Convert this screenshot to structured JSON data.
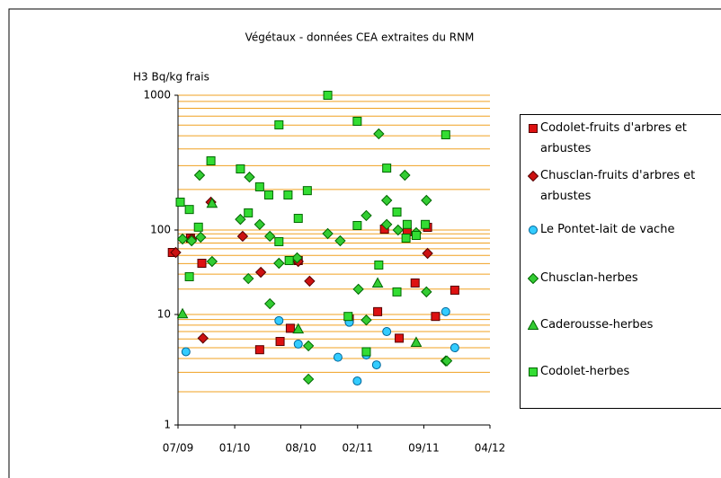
{
  "chart_data": {
    "type": "scatter",
    "title": "Végétaux - données CEA extraites du RNM",
    "y_label": "H3 Bq/kg frais",
    "xlim": [
      2009.5,
      2012.25
    ],
    "xticks": [
      {
        "value": 2009.5,
        "label": "07/09"
      },
      {
        "value": 2010.0,
        "label": "01/10"
      },
      {
        "value": 2010.583,
        "label": "08/10"
      },
      {
        "value": 2011.083,
        "label": "02/11"
      },
      {
        "value": 2011.667,
        "label": "09/11"
      },
      {
        "value": 2012.25,
        "label": "04/12"
      }
    ],
    "ylim": [
      1,
      1000
    ],
    "yticks": [
      1,
      10,
      100,
      1000
    ],
    "log_y": true,
    "grid": true,
    "grid_color": "#f0a020",
    "legend": "right",
    "series": [
      {
        "name": "Codolet-fruits d'arbres et arbustes",
        "color": "#dd1111",
        "marker": "square",
        "x": [
          2009.45,
          2009.61,
          2009.71,
          2010.22,
          2010.4,
          2010.49,
          2010.56,
          2011.01,
          2011.26,
          2011.32,
          2011.45,
          2011.52,
          2011.59,
          2011.7,
          2011.77,
          2011.94
        ],
        "values": [
          54.2,
          80.2,
          40.4,
          4.8,
          5.7,
          7.5,
          43.5,
          9.1,
          10.8,
          101.5,
          6.1,
          95.2,
          23.6,
          104.7,
          9.6,
          19.4
        ]
      },
      {
        "name": "Chusclan-fruits d'arbres et arbustes",
        "color": "#cc1111",
        "marker": "diamond",
        "x": [
          2009.48,
          2009.62,
          2009.72,
          2009.79,
          2010.07,
          2010.23,
          2010.56,
          2010.66,
          2011.7
        ],
        "values": [
          54.2,
          78.3,
          6.1,
          161,
          84.3,
          31.6,
          42.4,
          24.8,
          52.9
        ]
      },
      {
        "name": "Le Pontet-lait de vache",
        "color": "#33ccff",
        "marker": "circle",
        "x": [
          2009.57,
          2010.39,
          2010.56,
          2010.91,
          2011.01,
          2011.08,
          2011.16,
          2011.25,
          2011.34,
          2011.86,
          2011.94
        ],
        "values": [
          4.6,
          8.8,
          5.4,
          4.1,
          8.5,
          2.5,
          4.3,
          3.5,
          7.0,
          10.8,
          5.0
        ]
      },
      {
        "name": "Chusclan-herbes",
        "color": "#33cc33",
        "marker": "diamond",
        "x": [
          2009.54,
          2009.62,
          2009.69,
          2009.7,
          2009.8,
          2010.05,
          2010.12,
          2010.13,
          2010.22,
          2010.31,
          2010.31,
          2010.39,
          2010.55,
          2010.65,
          2010.65,
          2010.82,
          2010.93,
          2011.09,
          2011.16,
          2011.16,
          2011.27,
          2011.34,
          2011.34,
          2011.44,
          2011.5,
          2011.6,
          2011.69,
          2011.69,
          2011.86,
          2011.87
        ],
        "values": [
          78.3,
          74.5,
          255,
          82.2,
          42.4,
          120,
          26.6,
          247,
          110,
          84.3,
          13.4,
          40.4,
          46.8,
          5.2,
          2.6,
          90.7,
          74.5,
          19.9,
          8.9,
          128,
          517,
          166,
          110,
          100,
          255,
          92.9,
          18.5,
          166,
          3.8,
          3.8
        ]
      },
      {
        "name": "Caderousse-herbes",
        "color": "#33cc33",
        "marker": "triangle",
        "x": [
          2009.54,
          2009.8,
          2010.56,
          2011.26,
          2011.6
        ],
        "values": [
          10.2,
          158,
          7.4,
          23.6,
          5.6
        ]
      },
      {
        "name": "Codolet-herbes",
        "color": "#33dd33",
        "marker": "square",
        "x": [
          2009.52,
          2009.6,
          2009.68,
          2009.6,
          2009.79,
          2010.05,
          2010.12,
          2010.22,
          2010.3,
          2010.39,
          2010.39,
          2010.47,
          2010.48,
          2010.56,
          2010.64,
          2010.82,
          2011.0,
          2011.08,
          2011.08,
          2011.16,
          2011.27,
          2011.34,
          2011.43,
          2011.43,
          2011.52,
          2011.51,
          2011.6,
          2011.68,
          2011.86
        ],
        "values": [
          161,
          142,
          105,
          28,
          326,
          284,
          134,
          209,
          182,
          603,
          72.8,
          182,
          43.5,
          122,
          196,
          1000,
          9.6,
          641,
          108,
          4.6,
          38.5,
          288,
          136,
          18.5,
          110,
          80.2,
          86.3,
          110,
          509
        ]
      }
    ]
  }
}
